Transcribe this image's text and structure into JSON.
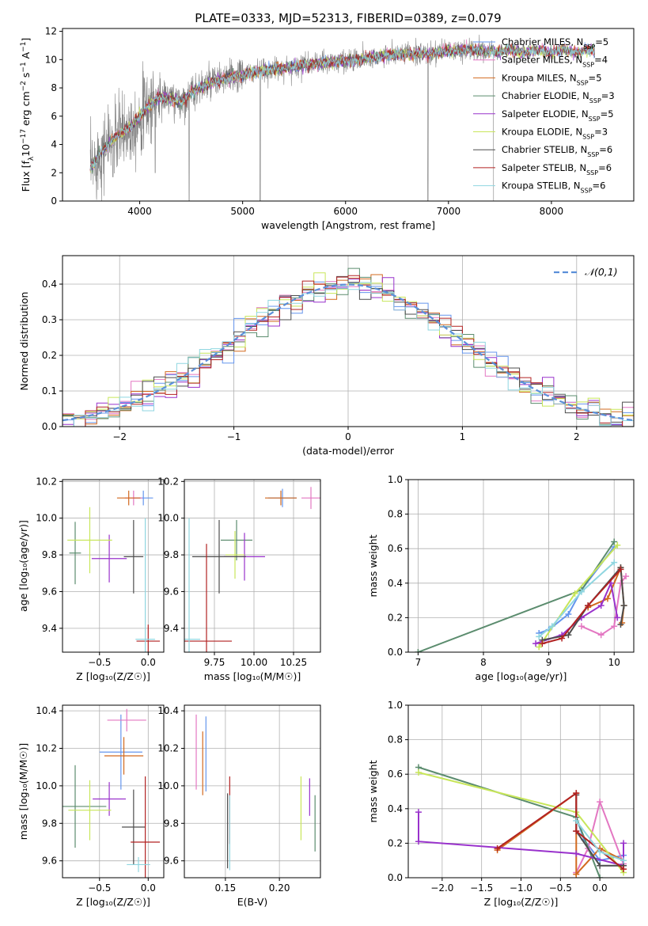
{
  "figure": {
    "title": "PLATE=0333, MJD=52313, FIBERID=0389, z=0.079"
  },
  "models": [
    {
      "name": "Chabrier MILES",
      "nssp": "5",
      "color": "#6495ed"
    },
    {
      "name": "Salpeter MILES",
      "nssp": "4",
      "color": "#e377c2"
    },
    {
      "name": "Kroupa MILES",
      "nssp": "5",
      "color": "#d2691e"
    },
    {
      "name": "Chabrier ELODIE",
      "nssp": "3",
      "color": "#5b8c6e"
    },
    {
      "name": "Salpeter ELODIE",
      "nssp": "5",
      "color": "#9932cc"
    },
    {
      "name": "Kroupa ELODIE",
      "nssp": "3",
      "color": "#c8e65a"
    },
    {
      "name": "Chabrier STELIB",
      "nssp": "6",
      "color": "#4d4d4d"
    },
    {
      "name": "Salpeter STELIB",
      "nssp": "6",
      "color": "#b22222"
    },
    {
      "name": "Kroupa STELIB",
      "nssp": "6",
      "color": "#8fd6e0"
    }
  ],
  "chart_data": [
    {
      "id": "spectrum",
      "type": "line",
      "xlabel": "wavelength [Angstrom, rest frame]",
      "ylabel_parts": [
        "Flux [f",
        "λ",
        "10",
        "−17",
        " erg cm",
        "−2",
        " s",
        "−1",
        " A",
        "−1",
        "]"
      ],
      "xlim": [
        3250,
        8800
      ],
      "ylim": [
        0,
        12.2
      ],
      "xticks": [
        4000,
        5000,
        6000,
        7000,
        8000
      ],
      "yticks": [
        0,
        2,
        4,
        6,
        8,
        10,
        12
      ],
      "legend": "top-right",
      "continuum": {
        "x": [
          3520,
          3600,
          3700,
          3800,
          3900,
          4000,
          4100,
          4200,
          4300,
          4400,
          4500,
          4600,
          4800,
          5000,
          5200,
          5400,
          5600,
          5800,
          6000,
          6200,
          6400,
          6600,
          6800,
          7000,
          7200,
          7400,
          7440
        ],
        "y": [
          2.2,
          3.2,
          4.1,
          4.7,
          5.2,
          6.0,
          6.8,
          7.4,
          7.3,
          7.0,
          7.6,
          8.1,
          8.6,
          8.9,
          9.2,
          9.4,
          9.6,
          9.8,
          9.9,
          10.1,
          10.3,
          10.4,
          10.4,
          10.6,
          10.7,
          10.6,
          10.6
        ]
      },
      "model_wave_range": [
        3520,
        8420
      ],
      "dips": [
        {
          "x": 4480,
          "y": 0
        },
        {
          "x": 5170,
          "y": 0
        },
        {
          "x": 6800,
          "y": 0
        },
        {
          "x": 3740,
          "y": 1.7
        },
        {
          "x": 4150,
          "y": 2.0
        },
        {
          "x": 7440,
          "y": 0
        }
      ]
    },
    {
      "id": "residuals",
      "type": "line",
      "xlabel": "(data-model)/error",
      "ylabel": "Normed distribution",
      "xlim": [
        -2.5,
        2.5
      ],
      "ylim": [
        0,
        0.48
      ],
      "xticks": [
        -2,
        -1,
        0,
        1,
        2
      ],
      "xtick_labels": [
        "−2",
        "−1",
        "0",
        "1",
        "2"
      ],
      "yticks": [
        0.0,
        0.1,
        0.2,
        0.3,
        0.4
      ],
      "ytick_labels": [
        "0.0",
        "0.1",
        "0.2",
        "0.3",
        "0.4"
      ],
      "grid": true,
      "legend": "top-right",
      "reference": {
        "label": "𝒩(0,1)",
        "color": "#5b8fd9",
        "dash": true
      }
    },
    {
      "id": "age_vs_z",
      "type": "scatter",
      "xlabel": "Z [log₁₀(Z/Z☉)]",
      "ylabel": "age  [log₁₀(age/yr)]",
      "xlim": [
        -0.88,
        0.16
      ],
      "ylim": [
        9.27,
        10.21
      ],
      "xticks": [
        -0.5,
        0.0
      ],
      "xtick_labels": [
        "−0.5",
        "0.0"
      ],
      "yticks": [
        9.4,
        9.6,
        9.8,
        10.0,
        10.2
      ],
      "ytick_labels": [
        "9.4",
        "9.6",
        "9.8",
        "10.0",
        "10.2"
      ],
      "grid": true,
      "points": [
        {
          "model": 0,
          "x": -0.05,
          "y": 10.11,
          "xe": 0.1,
          "ye": 0.04
        },
        {
          "model": 1,
          "x": -0.15,
          "y": 10.11,
          "xe": 0.09,
          "ye": 0.04
        },
        {
          "model": 2,
          "x": -0.2,
          "y": 10.11,
          "xe": 0.12,
          "ye": 0.04
        },
        {
          "model": 3,
          "x": -0.75,
          "y": 9.81,
          "xe": 0.06,
          "ye": 0.17
        },
        {
          "model": 4,
          "x": -0.4,
          "y": 9.78,
          "xe": 0.18,
          "ye": 0.13
        },
        {
          "model": 5,
          "x": -0.6,
          "y": 9.88,
          "xe": 0.23,
          "ye": 0.18
        },
        {
          "model": 6,
          "x": -0.15,
          "y": 9.79,
          "xe": 0.1,
          "ye": 0.2
        },
        {
          "model": 7,
          "x": 0.0,
          "y": 9.33,
          "xe": 0.12,
          "ye": 0.09
        },
        {
          "model": 8,
          "x": -0.03,
          "y": 9.34,
          "xe": 0.1,
          "ye": 0.66
        }
      ]
    },
    {
      "id": "age_vs_mass",
      "type": "scatter",
      "xlabel": "mass [log₁₀(M/M☉)]",
      "xlim": [
        9.56,
        10.42
      ],
      "ylim": [
        9.27,
        10.21
      ],
      "xticks": [
        9.75,
        10.0,
        10.25
      ],
      "xtick_labels": [
        "9.75",
        "10.00",
        "10.25"
      ],
      "yticks": [
        9.4,
        9.6,
        9.8,
        10.0,
        10.2
      ],
      "ytick_labels": [
        "9.4",
        "9.6",
        "9.8",
        "10.0",
        "10.2"
      ],
      "grid": true,
      "points": [
        {
          "model": 0,
          "x": 10.18,
          "y": 10.11,
          "xe": 0.09,
          "ye": 0.05
        },
        {
          "model": 1,
          "x": 10.36,
          "y": 10.11,
          "xe": 0.06,
          "ye": 0.06
        },
        {
          "model": 2,
          "x": 10.17,
          "y": 10.11,
          "xe": 0.1,
          "ye": 0.04
        },
        {
          "model": 3,
          "x": 9.89,
          "y": 9.88,
          "xe": 0.1,
          "ye": 0.11
        },
        {
          "model": 4,
          "x": 9.94,
          "y": 9.79,
          "xe": 0.13,
          "ye": 0.13
        },
        {
          "model": 5,
          "x": 9.88,
          "y": 9.8,
          "xe": 0.06,
          "ye": 0.13
        },
        {
          "model": 6,
          "x": 9.78,
          "y": 9.79,
          "xe": 0.17,
          "ye": 0.2
        },
        {
          "model": 7,
          "x": 9.7,
          "y": 9.33,
          "xe": 0.16,
          "ye": 0.53
        },
        {
          "model": 8,
          "x": 9.59,
          "y": 9.34,
          "xe": 0.07,
          "ye": 0.66
        }
      ]
    },
    {
      "id": "weight_vs_age",
      "type": "line",
      "xlabel": "age  [log₁₀(age/yr)]",
      "ylabel": "mass weight",
      "xlim": [
        6.85,
        10.3
      ],
      "ylim": [
        0,
        1.0
      ],
      "xticks": [
        7,
        8,
        9,
        10
      ],
      "xtick_labels": [
        "7",
        "8",
        "9",
        "10"
      ],
      "yticks": [
        0.0,
        0.2,
        0.4,
        0.6,
        0.8,
        1.0
      ],
      "ytick_labels": [
        "0.0",
        "0.2",
        "0.4",
        "0.6",
        "0.8",
        "1.0"
      ],
      "grid": true,
      "series": [
        {
          "model": 0,
          "x": [
            8.85,
            9.0,
            9.3,
            9.5,
            10.0
          ],
          "y": [
            0.11,
            0.13,
            0.22,
            0.36,
            0.61
          ]
        },
        {
          "model": 1,
          "x": [
            9.5,
            9.8,
            10.0,
            10.1,
            10.18
          ],
          "y": [
            0.15,
            0.1,
            0.15,
            0.4,
            0.44
          ]
        },
        {
          "model": 2,
          "x": [
            9.6,
            9.9,
            10.1,
            10.15,
            10.12
          ],
          "y": [
            0.26,
            0.31,
            0.49,
            0.27,
            0.17
          ]
        },
        {
          "model": 3,
          "x": [
            7.0,
            9.5,
            10.0
          ],
          "y": [
            0.0,
            0.36,
            0.64
          ]
        },
        {
          "model": 4,
          "x": [
            8.8,
            9.2,
            9.5,
            9.8,
            9.95,
            10.05
          ],
          "y": [
            0.05,
            0.1,
            0.2,
            0.27,
            0.4,
            0.2
          ]
        },
        {
          "model": 5,
          "x": [
            8.85,
            9.4,
            10.05
          ],
          "y": [
            0.03,
            0.34,
            0.62
          ]
        },
        {
          "model": 6,
          "x": [
            8.9,
            9.3,
            9.6,
            10.1,
            10.15,
            10.1
          ],
          "y": [
            0.07,
            0.1,
            0.27,
            0.49,
            0.27,
            0.16
          ]
        },
        {
          "model": 7,
          "x": [
            8.9,
            9.2,
            9.6,
            10.1
          ],
          "y": [
            0.05,
            0.08,
            0.27,
            0.48
          ]
        },
        {
          "model": 8,
          "x": [
            8.85,
            9.05,
            9.5,
            10.0
          ],
          "y": [
            0.09,
            0.15,
            0.35,
            0.52
          ]
        }
      ]
    },
    {
      "id": "mass_vs_z",
      "type": "scatter",
      "xlabel": "Z [log₁₀(Z/Z☉)]",
      "ylabel": "mass [log₁₀(M/M☉)]",
      "xlim": [
        -0.88,
        0.16
      ],
      "ylim": [
        9.51,
        10.43
      ],
      "xticks": [
        -0.5,
        0.0
      ],
      "xtick_labels": [
        "−0.5",
        "0.0"
      ],
      "yticks": [
        9.6,
        9.8,
        10.0,
        10.2,
        10.4
      ],
      "ytick_labels": [
        "9.6",
        "9.8",
        "10.0",
        "10.2",
        "10.4"
      ],
      "grid": true,
      "points": [
        {
          "model": 0,
          "x": -0.28,
          "y": 10.18,
          "xe": 0.22,
          "ye": 0.2
        },
        {
          "model": 1,
          "x": -0.22,
          "y": 10.35,
          "xe": 0.2,
          "ye": 0.06
        },
        {
          "model": 2,
          "x": -0.25,
          "y": 10.16,
          "xe": 0.2,
          "ye": 0.1
        },
        {
          "model": 3,
          "x": -0.75,
          "y": 9.89,
          "xe": 0.32,
          "ye": 0.22
        },
        {
          "model": 4,
          "x": -0.4,
          "y": 9.93,
          "xe": 0.17,
          "ye": 0.09
        },
        {
          "model": 5,
          "x": -0.6,
          "y": 9.87,
          "xe": 0.22,
          "ye": 0.16
        },
        {
          "model": 6,
          "x": -0.15,
          "y": 9.78,
          "xe": 0.12,
          "ye": 0.2
        },
        {
          "model": 7,
          "x": -0.03,
          "y": 9.7,
          "xe": 0.15,
          "ye": 0.35
        },
        {
          "model": 8,
          "x": -0.1,
          "y": 9.58,
          "xe": 0.12,
          "ye": 0.04
        }
      ]
    },
    {
      "id": "mass_vs_ebv",
      "type": "scatter",
      "xlabel": "E(B-V)",
      "xlim": [
        0.112,
        0.238
      ],
      "ylim": [
        9.51,
        10.43
      ],
      "xticks": [
        0.15,
        0.2
      ],
      "xtick_labels": [
        "0.15",
        "0.20"
      ],
      "yticks": [
        9.6,
        9.8,
        10.0,
        10.2,
        10.4
      ],
      "ytick_labels": [
        "9.6",
        "9.8",
        "10.0",
        "10.2",
        "10.4"
      ],
      "grid": true,
      "points": [
        {
          "model": 0,
          "x": 0.132,
          "y": 10.17,
          "ye": 0.2
        },
        {
          "model": 1,
          "x": 0.123,
          "y": 10.18,
          "ye": 0.2
        },
        {
          "model": 2,
          "x": 0.129,
          "y": 10.12,
          "ye": 0.17
        },
        {
          "model": 3,
          "x": 0.233,
          "y": 9.8,
          "ye": 0.15
        },
        {
          "model": 4,
          "x": 0.228,
          "y": 9.94,
          "ye": 0.1
        },
        {
          "model": 5,
          "x": 0.22,
          "y": 9.88,
          "ye": 0.17
        },
        {
          "model": 6,
          "x": 0.152,
          "y": 9.76,
          "ye": 0.2
        },
        {
          "model": 7,
          "x": 0.154,
          "y": 9.87,
          "ye": 0.18
        },
        {
          "model": 8,
          "x": 0.154,
          "y": 9.75,
          "ye": 0.2
        }
      ]
    },
    {
      "id": "weight_vs_z",
      "type": "line",
      "xlabel": "Z [log₁₀(Z/Z☉)]",
      "ylabel": "mass weight",
      "xlim": [
        -2.43,
        0.43
      ],
      "ylim": [
        0,
        1.0
      ],
      "xticks": [
        -2.0,
        -1.5,
        -1.0,
        -0.5,
        0.0
      ],
      "xtick_labels": [
        "−2.0",
        "−1.5",
        "−1.0",
        "−0.5",
        "0.0"
      ],
      "yticks": [
        0.0,
        0.2,
        0.4,
        0.6,
        0.8,
        1.0
      ],
      "ytick_labels": [
        "0.0",
        "0.2",
        "0.4",
        "0.6",
        "0.8",
        "1.0"
      ],
      "grid": true,
      "series": [
        {
          "model": 0,
          "x": [
            -0.3,
            -0.2,
            0.0,
            0.3
          ],
          "y": [
            0.35,
            0.22,
            0.1,
            0.13
          ]
        },
        {
          "model": 1,
          "x": [
            -0.3,
            -0.15,
            0.0,
            0.3
          ],
          "y": [
            0.03,
            0.17,
            0.44,
            0.08
          ]
        },
        {
          "model": 2,
          "x": [
            -1.3,
            -0.3,
            -0.3,
            0.0,
            0.3
          ],
          "y": [
            0.16,
            0.49,
            0.02,
            0.17,
            0.1
          ]
        },
        {
          "model": 3,
          "x": [
            -2.3,
            -0.3,
            0.0
          ],
          "y": [
            0.64,
            0.35,
            0.0
          ]
        },
        {
          "model": 4,
          "x": [
            -2.3,
            -2.3,
            -0.3,
            0.3,
            0.3
          ],
          "y": [
            0.38,
            0.21,
            0.14,
            0.07,
            0.2
          ]
        },
        {
          "model": 5,
          "x": [
            -2.3,
            -0.3,
            0.3
          ],
          "y": [
            0.61,
            0.38,
            0.03
          ]
        },
        {
          "model": 6,
          "x": [
            -0.3,
            -0.3,
            0.0,
            0.3
          ],
          "y": [
            0.48,
            0.27,
            0.07,
            0.07
          ]
        },
        {
          "model": 7,
          "x": [
            -1.3,
            -0.3,
            -0.3,
            0.3
          ],
          "y": [
            0.17,
            0.49,
            0.27,
            0.05
          ]
        },
        {
          "model": 8,
          "x": [
            -0.3,
            0.0,
            0.3
          ],
          "y": [
            0.33,
            0.15,
            0.1
          ]
        }
      ]
    }
  ]
}
